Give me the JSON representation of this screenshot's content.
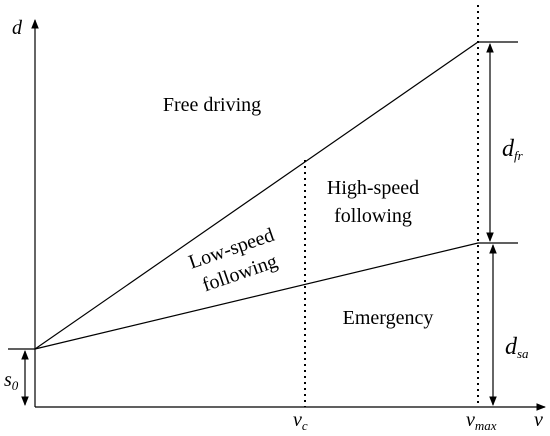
{
  "axes": {
    "y": "d",
    "x": "v"
  },
  "regions": {
    "free_driving": "Free driving",
    "high_speed_following": [
      "High-speed",
      "following"
    ],
    "low_speed_following": [
      "Low-speed",
      "following"
    ],
    "emergency": "Emergency"
  },
  "markers": {
    "s0": {
      "base": "s",
      "sub": "0"
    },
    "vc": {
      "base": "v",
      "sub": "c"
    },
    "vmax": {
      "base": "v",
      "sub": "max"
    },
    "dfr": {
      "base": "d",
      "sub": "fr"
    },
    "dsa": {
      "base": "d",
      "sub": "sa"
    }
  }
}
